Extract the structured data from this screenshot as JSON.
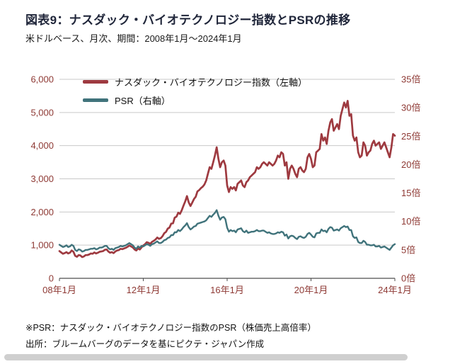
{
  "meta": {
    "title": "図表9：ナスダック・バイオテクノロジー指数とPSRの推移",
    "subtitle": "米ドルベース、月次、期間：2008年1月～2024年1月"
  },
  "footer": {
    "note1": "※PSR：ナスダック・バイオテクノロジー指数のPSR（株価売上高倍率）",
    "note2": "出所：ブルームバーグのデータを基にピクテ・ジャパン作成"
  },
  "colors": {
    "index_line": "#9e3a40",
    "psr_line": "#40737b",
    "axis_text": "#8e3934",
    "grid": "#c9c9c9",
    "axis_line": "#4d4d4d",
    "title_text": "#20263a"
  },
  "chart_data": {
    "type": "line",
    "x_unit": "month",
    "x_range": [
      "2008-01",
      "2024-01"
    ],
    "grid": "horizontal",
    "legend_position": "top-left-inside",
    "xticks": [
      {
        "index": 0,
        "label": "08年1月"
      },
      {
        "index": 48,
        "label": "12年1月"
      },
      {
        "index": 96,
        "label": "16年1月"
      },
      {
        "index": 144,
        "label": "20年1月"
      },
      {
        "index": 192,
        "label": "24年1月"
      }
    ],
    "y_left": {
      "min": 0,
      "max": 6000,
      "step": 1000,
      "tick_labels": [
        "0",
        "1,000",
        "2,000",
        "3,000",
        "4,000",
        "5,000",
        "6,000"
      ]
    },
    "y_right": {
      "min": 0,
      "max": 35,
      "step": 5,
      "tick_labels": [
        "0倍",
        "5倍",
        "10倍",
        "15倍",
        "20倍",
        "25倍",
        "30倍",
        "35倍"
      ]
    },
    "series": [
      {
        "name": "ナスダック・バイオテクノロジー指数（左軸）",
        "axis": "left",
        "color": "#9e3a40",
        "values": [
          820,
          780,
          740,
          760,
          790,
          750,
          770,
          840,
          800,
          680,
          650,
          700,
          690,
          640,
          660,
          700,
          700,
          720,
          750,
          740,
          780,
          750,
          770,
          800,
          810,
          820,
          860,
          870,
          810,
          770,
          790,
          760,
          810,
          840,
          850,
          890,
          880,
          900,
          920,
          950,
          990,
          960,
          930,
          870,
          840,
          900,
          870,
          930,
          990,
          1030,
          1090,
          1070,
          1040,
          1100,
          1130,
          1170,
          1230,
          1190,
          1210,
          1270,
          1360,
          1400,
          1500,
          1530,
          1650,
          1660,
          1830,
          1860,
          1980,
          1940,
          2050,
          2190,
          2320,
          2480,
          2290,
          2180,
          2280,
          2390,
          2460,
          2620,
          2660,
          2720,
          2760,
          2830,
          2950,
          3150,
          3350,
          3300,
          3500,
          3700,
          3950,
          3600,
          3350,
          3500,
          3550,
          3400,
          2800,
          2600,
          2750,
          2700,
          2750,
          2650,
          2850,
          2900,
          2950,
          2800,
          2750,
          2900,
          2950,
          3050,
          3100,
          3150,
          3200,
          3350,
          3300,
          3350,
          3450,
          3500,
          3450,
          3400,
          3500,
          3450,
          3400,
          3450,
          3550,
          3700,
          3650,
          3800,
          3750,
          3400,
          3500,
          3000,
          3300,
          3400,
          3300,
          3150,
          3050,
          3300,
          3350,
          3250,
          3200,
          3300,
          3650,
          3750,
          3600,
          3350,
          3400,
          3800,
          3850,
          3900,
          4350,
          4150,
          4250,
          4050,
          4450,
          4700,
          4800,
          4450,
          4550,
          4650,
          4500,
          4900,
          5100,
          5300,
          5150,
          5350,
          4900,
          4950,
          4300,
          4150,
          4250,
          3800,
          3650,
          3700,
          4100,
          4000,
          3700,
          3800,
          3850,
          4050,
          4150,
          4000,
          4050,
          4100,
          3900,
          4000,
          4100,
          3950,
          3800,
          3650,
          3950,
          4350,
          4300
        ]
      },
      {
        "name": "PSR（右軸）",
        "axis": "right",
        "color": "#40737b",
        "values": [
          5.9,
          5.7,
          5.5,
          5.6,
          5.8,
          5.5,
          5.6,
          5.9,
          5.7,
          5.0,
          4.8,
          5.1,
          5.0,
          4.7,
          4.8,
          5.0,
          5.0,
          5.1,
          5.2,
          5.2,
          5.3,
          5.1,
          5.2,
          5.4,
          5.4,
          5.5,
          5.7,
          5.7,
          5.3,
          5.1,
          5.2,
          5.0,
          5.3,
          5.4,
          5.5,
          5.7,
          5.6,
          5.7,
          5.8,
          6.0,
          6.2,
          6.0,
          5.8,
          5.4,
          5.2,
          5.6,
          5.4,
          5.7,
          5.6,
          5.8,
          6.0,
          5.9,
          5.7,
          6.0,
          6.1,
          6.3,
          6.5,
          6.2,
          6.2,
          6.4,
          6.7,
          6.8,
          7.1,
          7.2,
          7.6,
          7.6,
          8.1,
          8.1,
          8.5,
          8.3,
          8.6,
          9.0,
          9.3,
          9.7,
          9.0,
          8.6,
          8.8,
          9.1,
          9.2,
          9.6,
          9.7,
          9.8,
          9.9,
          10.0,
          10.2,
          10.6,
          11.0,
          10.8,
          11.2,
          11.5,
          12.0,
          11.0,
          10.3,
          10.7,
          10.8,
          10.4,
          8.9,
          8.2,
          8.5,
          8.3,
          8.4,
          8.1,
          8.6,
          8.7,
          8.8,
          8.3,
          8.1,
          8.4,
          8.0,
          8.1,
          8.2,
          8.2,
          8.3,
          8.5,
          8.3,
          8.3,
          8.4,
          8.4,
          8.2,
          8.0,
          8.1,
          7.9,
          7.8,
          7.8,
          7.9,
          8.1,
          8.0,
          8.2,
          8.1,
          7.5,
          7.7,
          7.0,
          7.4,
          7.5,
          7.4,
          7.1,
          6.9,
          7.3,
          7.4,
          7.2,
          7.1,
          7.3,
          7.8,
          8.0,
          7.7,
          7.3,
          7.2,
          7.9,
          8.0,
          8.0,
          8.6,
          8.3,
          8.4,
          8.1,
          8.7,
          9.0,
          8.9,
          8.4,
          8.5,
          8.6,
          8.4,
          8.8,
          9.0,
          9.2,
          9.0,
          9.1,
          8.5,
          8.5,
          7.4,
          7.1,
          7.2,
          6.4,
          6.2,
          6.2,
          6.6,
          6.4,
          5.9,
          5.9,
          5.8,
          5.8,
          5.9,
          5.6,
          5.6,
          5.7,
          5.4,
          5.5,
          5.6,
          5.4,
          5.2,
          5.0,
          5.4,
          5.8,
          6.0
        ]
      }
    ]
  }
}
